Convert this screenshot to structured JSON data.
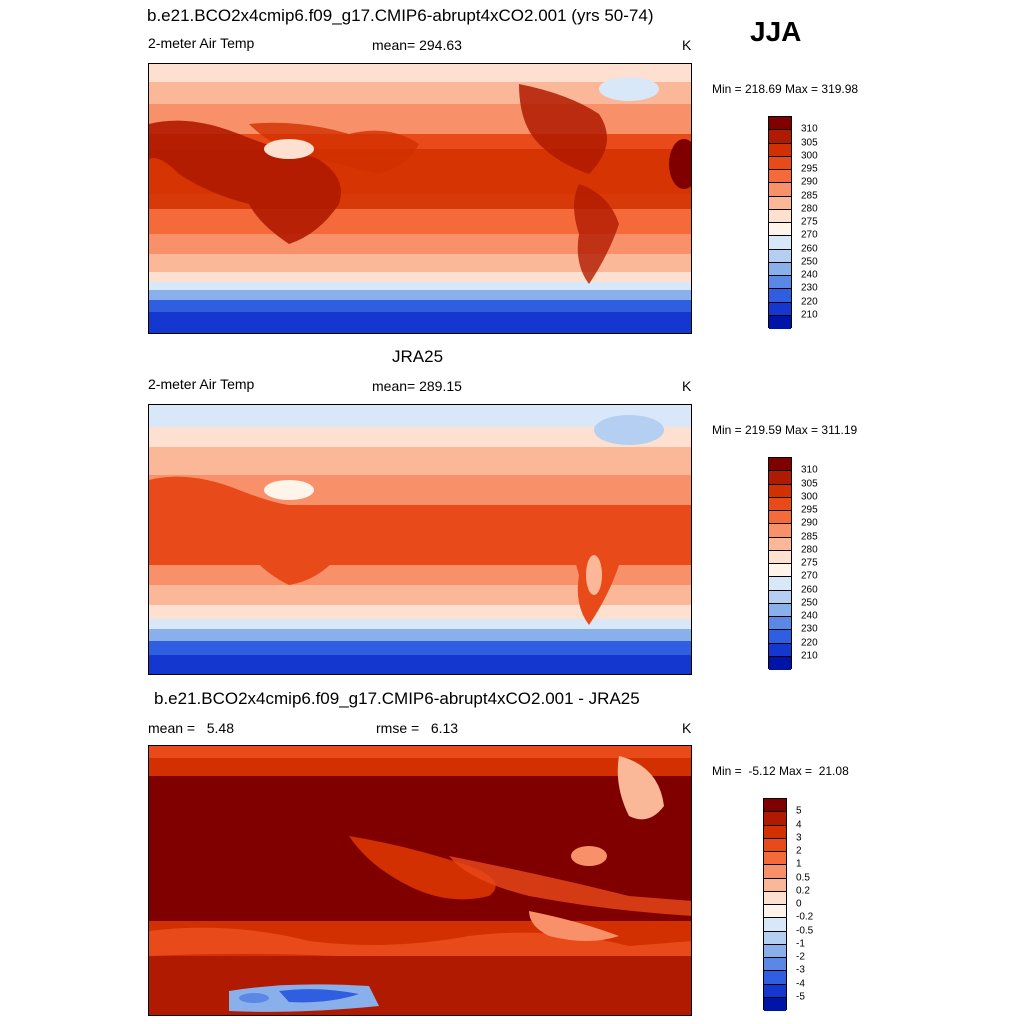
{
  "season": "JJA",
  "panels": [
    {
      "title": "b.e21.BCO2x4cmip6.f09_g17.CMIP6-abrupt4xCO2.001 (yrs 50-74)",
      "left": "2-meter Air Temp",
      "center": "mean= 294.63",
      "right": "K",
      "minmax": "Min = 218.69 Max = 319.98",
      "field": "model"
    },
    {
      "title": "JRA25",
      "left": "2-meter Air Temp",
      "center": "mean= 289.15",
      "right": "K",
      "minmax": "Min = 219.59 Max = 311.19",
      "field": "obs"
    },
    {
      "title": "b.e21.BCO2x4cmip6.f09_g17.CMIP6-abrupt4xCO2.001 - JRA25",
      "left": "mean =   5.48",
      "center": "rmse =   6.13",
      "right": "K",
      "minmax": "Min =  -5.12 Max =  21.08",
      "field": "diff"
    }
  ],
  "colorbars": {
    "temperature": {
      "labels": [
        "310",
        "305",
        "300",
        "295",
        "290",
        "285",
        "280",
        "275",
        "270",
        "260",
        "250",
        "240",
        "230",
        "220",
        "210"
      ],
      "colors": [
        "#800000",
        "#b01a00",
        "#d23000",
        "#e84a1a",
        "#f46a3a",
        "#f8906a",
        "#fbb898",
        "#fde0d0",
        "#fff4ea",
        "#d8e8f8",
        "#b4cff2",
        "#8ab0ec",
        "#5a88e4",
        "#2f5fe0",
        "#1437d0",
        "#0014a8"
      ]
    },
    "difference": {
      "labels": [
        "5",
        "4",
        "3",
        "2",
        "1",
        "0.5",
        "0.2",
        "0",
        "-0.2",
        "-0.5",
        "-1",
        "-2",
        "-3",
        "-4",
        "-5"
      ],
      "colors": [
        "#800000",
        "#b01a00",
        "#d23000",
        "#e84a1a",
        "#f46a3a",
        "#f8906a",
        "#fbb898",
        "#fde0d0",
        "#fff4ea",
        "#d8e8f8",
        "#b4cff2",
        "#8ab0ec",
        "#5a88e4",
        "#2f5fe0",
        "#1437d0",
        "#0014a8"
      ]
    }
  }
}
